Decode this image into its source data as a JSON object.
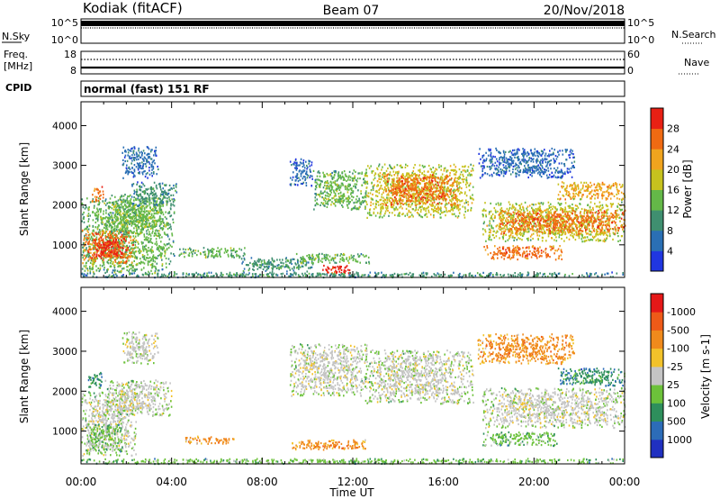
{
  "header": {
    "station": "Kodiak (fitACF)",
    "beam": "Beam 07",
    "date": "20/Nov/2018"
  },
  "strip_noise": {
    "left_label": "N.Sky",
    "left_ticks": [
      "10^5",
      "10^0"
    ],
    "right_ticks": [
      "10^5",
      "10^0"
    ],
    "right_label": "N.Search"
  },
  "strip_freq": {
    "left_label_1": "Freq.",
    "left_label_2": "[MHz]",
    "left_ticks": [
      "18",
      "8"
    ],
    "right_ticks": [
      "60",
      "0"
    ],
    "right_label": "Nave"
  },
  "strip_cpid": {
    "label": "CPID",
    "text": "normal (fast) 151 RF"
  },
  "x_axis": {
    "label": "Time UT",
    "ticks": [
      "00:00",
      "04:00",
      "08:00",
      "12:00",
      "16:00",
      "20:00",
      "00:00"
    ]
  },
  "chart_data": [
    {
      "type": "heatmap",
      "title": "",
      "xlabel": "Time UT",
      "ylabel": "Slant Range [km]",
      "xlim": [
        0,
        24
      ],
      "ylim": [
        180,
        4600
      ],
      "yticks": [
        1000,
        2000,
        3000,
        4000
      ],
      "ytick_labels": [
        "1000",
        "2000",
        "3000",
        "4000"
      ],
      "colorbar": {
        "label": "Power [dB]",
        "ticks": [
          "4",
          "8",
          "12",
          "16",
          "20",
          "24",
          "28"
        ],
        "colors": [
          "#2036e0",
          "#2a6fb4",
          "#3f8f70",
          "#64b848",
          "#c6c21e",
          "#f0a41e",
          "#f06a12",
          "#e82014"
        ]
      },
      "regions": [
        {
          "t0": 0.0,
          "t1": 4.1,
          "r0": 300,
          "r1": 2200,
          "level": 3
        },
        {
          "t0": 0.0,
          "t1": 2.3,
          "r0": 550,
          "r1": 1400,
          "level": 6
        },
        {
          "t0": 0.6,
          "t1": 2.0,
          "r0": 700,
          "r1": 1200,
          "level": 7
        },
        {
          "t0": 1.2,
          "t1": 3.6,
          "r0": 1300,
          "r1": 2300,
          "level": 3
        },
        {
          "t0": 2.2,
          "t1": 4.2,
          "r0": 2000,
          "r1": 2600,
          "level": 2
        },
        {
          "t0": 0.4,
          "t1": 1.0,
          "r0": 2100,
          "r1": 2500,
          "level": 6
        },
        {
          "t0": 1.8,
          "t1": 3.4,
          "r0": 2700,
          "r1": 3500,
          "level": 1
        },
        {
          "t0": 4.3,
          "t1": 7.2,
          "r0": 700,
          "r1": 950,
          "level": 3
        },
        {
          "t0": 7.0,
          "t1": 10.2,
          "r0": 350,
          "r1": 700,
          "level": 2
        },
        {
          "t0": 9.3,
          "t1": 12.7,
          "r0": 550,
          "r1": 800,
          "level": 3
        },
        {
          "t0": 10.6,
          "t1": 11.9,
          "r0": 300,
          "r1": 500,
          "level": 7
        },
        {
          "t0": 9.2,
          "t1": 10.2,
          "r0": 2500,
          "r1": 3200,
          "level": 1
        },
        {
          "t0": 10.2,
          "t1": 12.6,
          "r0": 1900,
          "r1": 2900,
          "level": 3
        },
        {
          "t0": 12.5,
          "t1": 17.3,
          "r0": 1700,
          "r1": 3050,
          "level": 4
        },
        {
          "t0": 13.3,
          "t1": 16.6,
          "r0": 2000,
          "r1": 2800,
          "level": 6
        },
        {
          "t0": 17.7,
          "t1": 24.0,
          "r0": 1100,
          "r1": 2100,
          "level": 4
        },
        {
          "t0": 18.4,
          "t1": 24.0,
          "r0": 1300,
          "r1": 1900,
          "level": 6
        },
        {
          "t0": 17.7,
          "t1": 21.2,
          "r0": 650,
          "r1": 1000,
          "level": 6
        },
        {
          "t0": 21.0,
          "t1": 24.0,
          "r0": 2150,
          "r1": 2600,
          "level": 5
        },
        {
          "t0": 17.5,
          "t1": 21.8,
          "r0": 2700,
          "r1": 3450,
          "level": 1
        },
        {
          "t0": 0.0,
          "t1": 24.0,
          "r0": 200,
          "r1": 330,
          "level": 2
        }
      ]
    },
    {
      "type": "heatmap",
      "title": "",
      "xlabel": "Time UT",
      "ylabel": "Slant Range [km]",
      "xlim": [
        0,
        24
      ],
      "ylim": [
        180,
        4600
      ],
      "yticks": [
        1000,
        2000,
        3000,
        4000
      ],
      "ytick_labels": [
        "1000",
        "2000",
        "3000",
        "4000"
      ],
      "colorbar": {
        "label": "Velocity [m s-1]",
        "ticks": [
          "1000",
          "500",
          "100",
          "25",
          "-25",
          "-100",
          "-500",
          "-1000"
        ],
        "colors": [
          "#2030c0",
          "#2c6cb8",
          "#2e8f5c",
          "#6cc23a",
          "#c4c4c4",
          "#f2c22a",
          "#f08a1c",
          "#ee5a18",
          "#e51818"
        ]
      },
      "regions": [
        {
          "t0": 0.0,
          "t1": 2.4,
          "r0": 400,
          "r1": 2000,
          "level": 4
        },
        {
          "t0": 0.2,
          "t1": 1.8,
          "r0": 500,
          "r1": 1200,
          "level": 3
        },
        {
          "t0": 1.0,
          "t1": 4.0,
          "r0": 1400,
          "r1": 2300,
          "level": 4
        },
        {
          "t0": 0.3,
          "t1": 0.9,
          "r0": 2100,
          "r1": 2500,
          "level": 2
        },
        {
          "t0": 1.8,
          "t1": 3.4,
          "r0": 2700,
          "r1": 3500,
          "level": 4
        },
        {
          "t0": 4.6,
          "t1": 6.8,
          "r0": 700,
          "r1": 900,
          "level": 6
        },
        {
          "t0": 9.3,
          "t1": 12.6,
          "r0": 550,
          "r1": 800,
          "level": 6
        },
        {
          "t0": 9.2,
          "t1": 12.6,
          "r0": 1900,
          "r1": 3200,
          "level": 4
        },
        {
          "t0": 12.5,
          "t1": 17.3,
          "r0": 1700,
          "r1": 3050,
          "level": 4
        },
        {
          "t0": 17.7,
          "t1": 24.0,
          "r0": 1100,
          "r1": 2100,
          "level": 4
        },
        {
          "t0": 17.7,
          "t1": 21.0,
          "r0": 650,
          "r1": 1000,
          "level": 3
        },
        {
          "t0": 21.0,
          "t1": 24.0,
          "r0": 2150,
          "r1": 2600,
          "level": 2
        },
        {
          "t0": 17.5,
          "t1": 21.8,
          "r0": 2700,
          "r1": 3450,
          "level": 6
        },
        {
          "t0": 0.0,
          "t1": 24.0,
          "r0": 200,
          "r1": 330,
          "level": 3
        }
      ]
    }
  ]
}
